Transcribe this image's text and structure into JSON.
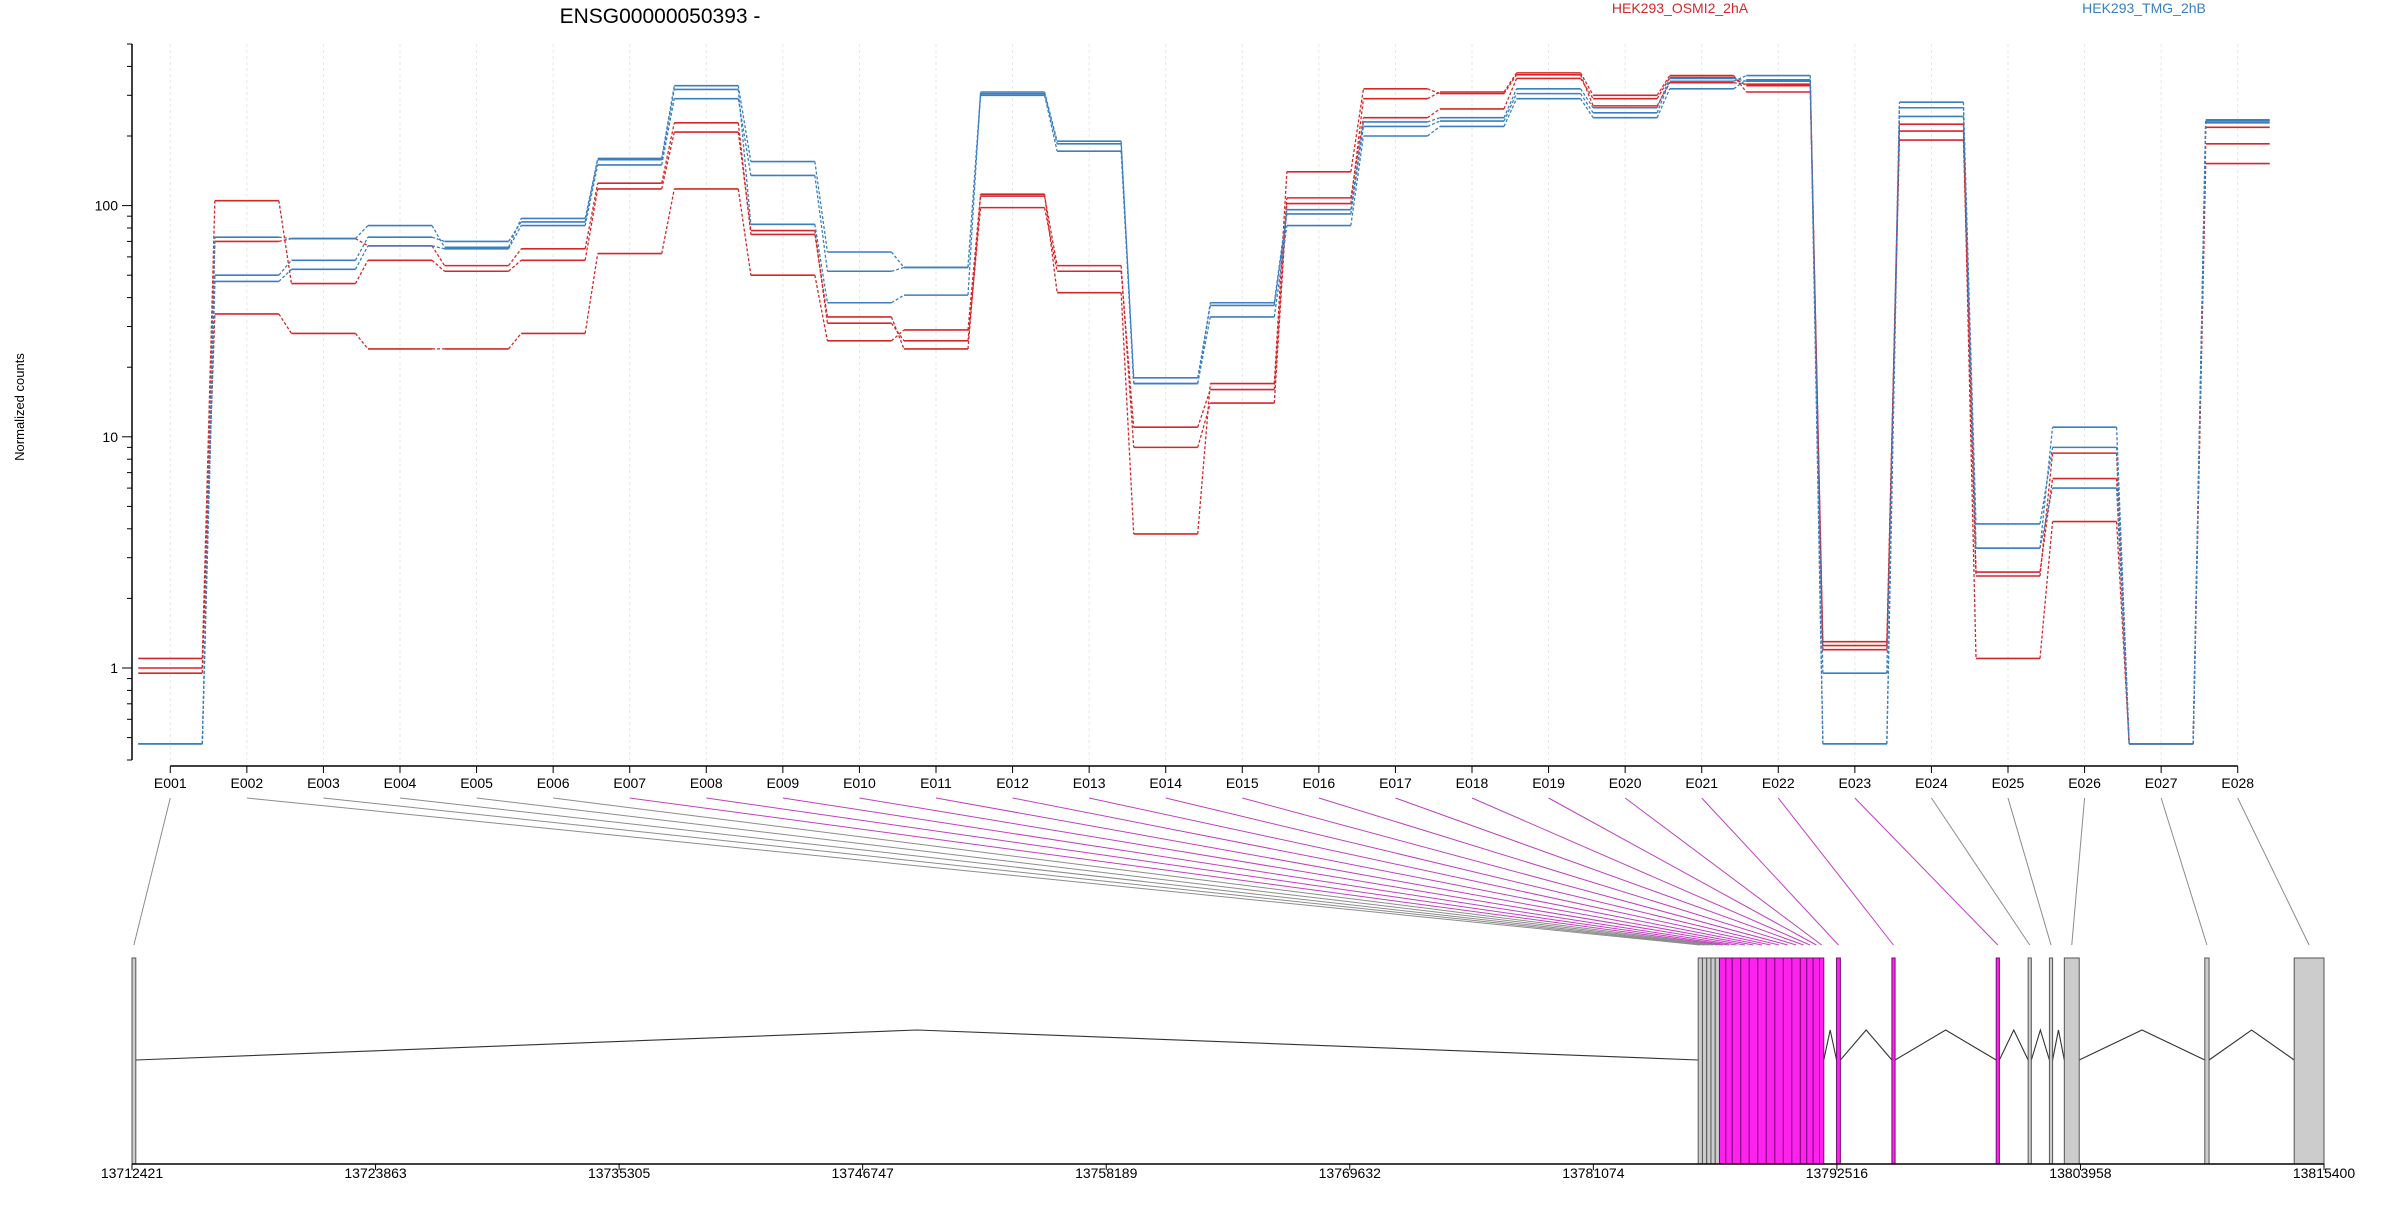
{
  "title": "ENSG00000050393 -",
  "legend": [
    {
      "label": "HEK293_OSMI2_2hA",
      "color": "#d62728"
    },
    {
      "label": "HEK293_TMG_2hB",
      "color": "#3a7fc1"
    }
  ],
  "colors": {
    "condition_a": "#d62728",
    "condition_b": "#3a7fc1",
    "connector_normal": "#8c8c8c",
    "connector_significant": "#c040c0",
    "exon_significant": "#ff22ee",
    "exon_normal": "#cccccc"
  },
  "chart_data": [
    {
      "type": "line",
      "title": "ENSG00000050393 -",
      "ylabel": "Normalized counts",
      "yscale": "log",
      "ylim": [
        0.4,
        500
      ],
      "yticks": [
        1,
        10,
        100
      ],
      "ytick_labels": [
        "1",
        "10",
        "100"
      ],
      "grid": "vertical",
      "legend_position": "top",
      "categories": [
        "E001",
        "E002",
        "E003",
        "E004",
        "E005",
        "E006",
        "E007",
        "E008",
        "E009",
        "E010",
        "E011",
        "E012",
        "E013",
        "E014",
        "E015",
        "E016",
        "E017",
        "E018",
        "E019",
        "E020",
        "E021",
        "E022",
        "E023",
        "E024",
        "E025",
        "E026",
        "E027",
        "E028"
      ],
      "series": [
        {
          "group": "HEK293_OSMI2_2hA",
          "values": [
            1.1,
            105,
            46,
            58,
            52,
            58,
            118,
            208,
            78,
            31,
            26,
            98,
            52,
            11,
            16,
            108,
            240,
            262,
            355,
            290,
            358,
            330,
            1.3,
            192,
            2.6,
            6.6,
            0.47,
            152
          ]
        },
        {
          "group": "HEK293_OSMI2_2hA",
          "values": [
            0.95,
            70,
            72,
            67,
            55,
            65,
            125,
            228,
            75,
            33,
            24,
            110,
            55,
            9,
            14,
            102,
            290,
            310,
            375,
            300,
            365,
            310,
            1.2,
            210,
            2.5,
            8.5,
            0.47,
            185
          ]
        },
        {
          "group": "HEK293_OSMI2_2hA",
          "values": [
            1.0,
            34,
            28,
            24,
            24,
            28,
            62,
            118,
            50,
            26,
            29,
            112,
            42,
            3.8,
            17,
            140,
            320,
            305,
            368,
            270,
            340,
            335,
            1.25,
            225,
            1.1,
            4.3,
            0.47,
            218
          ]
        },
        {
          "group": "HEK293_TMG_2hB",
          "values": [
            0.47,
            47,
            53,
            67,
            65,
            82,
            150,
            290,
            135,
            52,
            54,
            300,
            172,
            17,
            33,
            82,
            200,
            220,
            290,
            240,
            320,
            350,
            0.95,
            265,
            4.2,
            9,
            0.47,
            228
          ]
        },
        {
          "group": "HEK293_TMG_2hB",
          "values": [
            0.47,
            50,
            58,
            73,
            70,
            85,
            160,
            330,
            155,
            63,
            54,
            305,
            185,
            18,
            37,
            92,
            220,
            232,
            305,
            252,
            345,
            365,
            0.47,
            280,
            3.3,
            11,
            0.47,
            235
          ]
        },
        {
          "group": "HEK293_TMG_2hB",
          "values": [
            0.47,
            73,
            72,
            82,
            66,
            88,
            158,
            318,
            83,
            38,
            41,
            310,
            190,
            17,
            38,
            96,
            230,
            240,
            320,
            265,
            355,
            345,
            0.47,
            243,
            3.3,
            6,
            0.47,
            232
          ]
        }
      ],
      "highlighted_exons": [
        "E007",
        "E008",
        "E009",
        "E010",
        "E011",
        "E012",
        "E013",
        "E014",
        "E015",
        "E016",
        "E017",
        "E018",
        "E019",
        "E020",
        "E021",
        "E022",
        "E023"
      ]
    },
    {
      "type": "gene_model",
      "xlim": [
        13712421,
        13815400
      ],
      "xticks": [
        13712421,
        13723863,
        13735305,
        13746747,
        13758189,
        13769632,
        13781074,
        13792516,
        13803958,
        13815400
      ],
      "xtick_labels": [
        "13712421",
        "13723863",
        "13735305",
        "13746747",
        "13758189",
        "13769632",
        "13781074",
        "13792516",
        "13803958",
        "13815400"
      ],
      "exons": [
        {
          "id": "E001",
          "start": 13712421,
          "end": 13712600,
          "significant": false
        },
        {
          "id": "E002",
          "start": 13786000,
          "end": 13786200,
          "significant": false
        },
        {
          "id": "E003",
          "start": 13786200,
          "end": 13786400,
          "significant": false
        },
        {
          "id": "E004",
          "start": 13786400,
          "end": 13786600,
          "significant": false
        },
        {
          "id": "E005",
          "start": 13786600,
          "end": 13786800,
          "significant": false
        },
        {
          "id": "E006",
          "start": 13786800,
          "end": 13787000,
          "significant": false
        },
        {
          "id": "E007",
          "start": 13787000,
          "end": 13787300,
          "significant": true
        },
        {
          "id": "E008",
          "start": 13787300,
          "end": 13787600,
          "significant": true
        },
        {
          "id": "E009",
          "start": 13787600,
          "end": 13788000,
          "significant": true
        },
        {
          "id": "E010",
          "start": 13788000,
          "end": 13788400,
          "significant": true
        },
        {
          "id": "E011",
          "start": 13788400,
          "end": 13788800,
          "significant": true
        },
        {
          "id": "E012",
          "start": 13788800,
          "end": 13789200,
          "significant": true
        },
        {
          "id": "E013",
          "start": 13789200,
          "end": 13789600,
          "significant": true
        },
        {
          "id": "E014",
          "start": 13789600,
          "end": 13790000,
          "significant": true
        },
        {
          "id": "E015",
          "start": 13790000,
          "end": 13790400,
          "significant": true
        },
        {
          "id": "E016",
          "start": 13790400,
          "end": 13790800,
          "significant": true
        },
        {
          "id": "E017",
          "start": 13790800,
          "end": 13791100,
          "significant": true
        },
        {
          "id": "E018",
          "start": 13791100,
          "end": 13791400,
          "significant": true
        },
        {
          "id": "E019",
          "start": 13791400,
          "end": 13791700,
          "significant": true
        },
        {
          "id": "E020",
          "start": 13791700,
          "end": 13791900,
          "significant": true
        },
        {
          "id": "E021",
          "start": 13792500,
          "end": 13792680,
          "significant": true
        },
        {
          "id": "E022",
          "start": 13795100,
          "end": 13795250,
          "significant": true
        },
        {
          "id": "E023",
          "start": 13800000,
          "end": 13800150,
          "significant": true
        },
        {
          "id": "E024",
          "start": 13801500,
          "end": 13801650,
          "significant": false
        },
        {
          "id": "E025",
          "start": 13802500,
          "end": 13802650,
          "significant": false
        },
        {
          "id": "E026",
          "start": 13803200,
          "end": 13803900,
          "significant": false
        },
        {
          "id": "E027",
          "start": 13809800,
          "end": 13810000,
          "significant": false
        },
        {
          "id": "E028",
          "start": 13814000,
          "end": 13815400,
          "significant": false
        }
      ]
    }
  ]
}
